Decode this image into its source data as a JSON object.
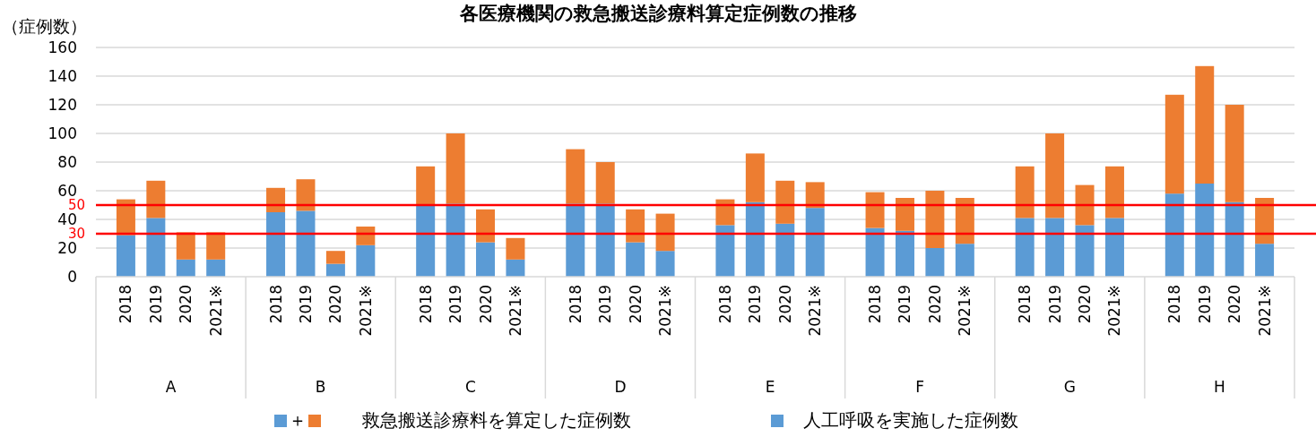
{
  "chart_data": {
    "type": "bar",
    "title": "各医療機関の救急搬送診療料算定症例数の推移",
    "ylabel": "（症例数）",
    "categories": [
      "2018",
      "2019",
      "2020",
      "2021※",
      "2018",
      "2019",
      "2020",
      "2021※",
      "2018",
      "2019",
      "2020",
      "2021※",
      "2018",
      "2019",
      "2020",
      "2021※",
      "2018",
      "2019",
      "2020",
      "2021※",
      "2018",
      "2019",
      "2020",
      "2021※",
      "2018",
      "2019",
      "2020",
      "2021※",
      "2018",
      "2019",
      "2020",
      "2021※"
    ],
    "series": [
      {
        "name": "人工呼吸を実施した症例数",
        "color": "#5b9bd5",
        "values": [
          29,
          41,
          12,
          12,
          45,
          46,
          9,
          22,
          50,
          51,
          24,
          12,
          51,
          51,
          24,
          18,
          36,
          52,
          37,
          48,
          34,
          32,
          20,
          23,
          41,
          41,
          36,
          41,
          58,
          65,
          52,
          23
        ]
      },
      {
        "name": "救急搬送診療料を算定した症例数",
        "color": "#ed7d31",
        "values": [
          25,
          26,
          19,
          19,
          17,
          22,
          9,
          13,
          27,
          49,
          23,
          15,
          38,
          29,
          23,
          26,
          18,
          34,
          30,
          18,
          25,
          23,
          40,
          32,
          36,
          59,
          28,
          36,
          69,
          82,
          68,
          32
        ]
      }
    ],
    "stacked": true,
    "ylim": [
      0,
      160
    ],
    "yticks": [
      0,
      20,
      40,
      60,
      80,
      100,
      120,
      140,
      160
    ],
    "grid": "y",
    "legend": "bottom",
    "ref_lines": [
      {
        "axis": "y",
        "value": 50,
        "label": "50",
        "color": "#ff0000"
      },
      {
        "axis": "y",
        "value": 30,
        "label": "30",
        "color": "#ff0000"
      }
    ],
    "annotations": [
      "A",
      "B",
      "C",
      "D",
      "E",
      "F",
      "G",
      "H",
      "＋"
    ]
  }
}
